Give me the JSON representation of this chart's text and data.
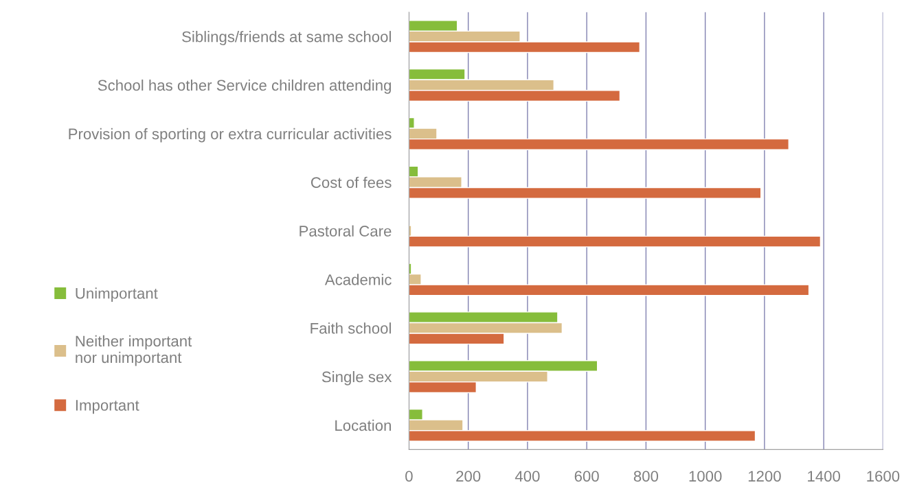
{
  "chart_data": {
    "type": "bar",
    "orientation": "horizontal",
    "categories": [
      "Siblings/friends at same school",
      "School has other Service children attending",
      "Provision of sporting or extra curricular activities",
      "Cost of fees",
      "Pastoral Care",
      "Academic",
      "Faith school",
      "Single sex",
      "Location"
    ],
    "series": [
      {
        "name": "Unimportant",
        "color": "#86bd3b",
        "values": [
          163,
          189,
          18,
          31,
          null,
          8,
          502,
          636,
          46
        ]
      },
      {
        "name": "Neither important\nnor unimportant",
        "color": "#dbbf8b",
        "values": [
          375,
          489,
          94,
          178,
          8,
          41,
          517,
          468,
          182
        ]
      },
      {
        "name": "Important",
        "color": "#d46a3f",
        "values": [
          779,
          712,
          1282,
          1188,
          1389,
          1350,
          321,
          227,
          1169
        ]
      }
    ],
    "xlim": [
      0,
      1600
    ],
    "xticks": [
      0,
      200,
      400,
      600,
      800,
      1000,
      1200,
      1400,
      1600
    ],
    "grid": "x",
    "legend": "left"
  }
}
